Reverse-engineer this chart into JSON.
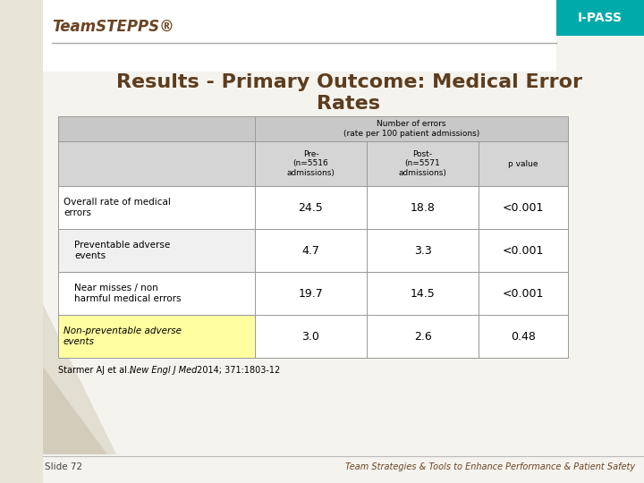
{
  "title_line1": "Results - Primary Outcome: Medical Error",
  "title_line2": "Rates",
  "header_brand": "TeamSTEPPS®",
  "header_ipass": "I-PASS",
  "bg_color": "#f5f3ee",
  "left_strip_color": "#e8e4d8",
  "title_color": "#5c3d1e",
  "ipass_bg": "#00aaaa",
  "ipass_text": "#ffffff",
  "teamstepps_color": "#6b4423",
  "table": {
    "col_header_bg": "#c8c8c8",
    "col_subheader_bg": "#d5d5d5",
    "row_bg_white": "#ffffff",
    "row_bg_light": "#f0f0f0",
    "highlight_bg": "#ffffa0",
    "border_color": "#999999",
    "merged_header_text": "Number of errors\n(rate per 100 patient admissions)",
    "col_sublabels": [
      "",
      "Pre-\n(n=5516\nadmissions)",
      "Post-\n(n=5571\nadmissions)",
      "p value"
    ],
    "rows": [
      {
        "label": "Overall rate of medical\nerrors",
        "pre": "24.5",
        "post": "18.8",
        "pval": "<0.001",
        "highlight": false,
        "indent": false
      },
      {
        "label": "Preventable adverse\nevents",
        "pre": "4.7",
        "post": "3.3",
        "pval": "<0.001",
        "highlight": false,
        "indent": true
      },
      {
        "label": "Near misses / non\nharmful medical errors",
        "pre": "19.7",
        "post": "14.5",
        "pval": "<0.001",
        "highlight": false,
        "indent": true
      },
      {
        "label": "Non-preventable adverse\nevents",
        "pre": "3.0",
        "post": "2.6",
        "pval": "0.48",
        "highlight": true,
        "indent": false
      }
    ]
  },
  "footnote_normal1": "Starmer AJ et al., ",
  "footnote_italic": "New Engl J Med",
  "footnote_normal2": " 2014; 371:1803-12",
  "slide_num": "Slide 72",
  "footer_text": "Team Strategies & Tools to Enhance Performance & Patient Safety",
  "footer_color": "#6b4423"
}
